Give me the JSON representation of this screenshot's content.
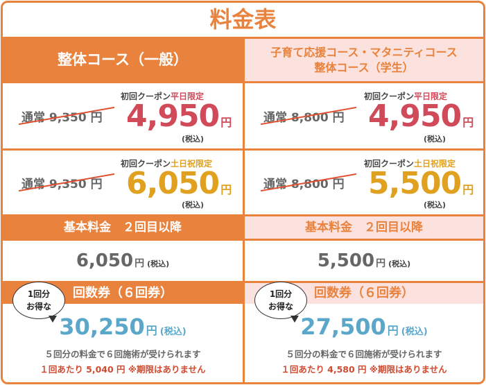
{
  "title": "料金表",
  "columns": [
    {
      "header": [
        "整体コース（一般）"
      ],
      "coupons": [
        {
          "regular": "通常 9,350 円",
          "label": "初回クーポン",
          "limit": "平日限定",
          "price": "4,950",
          "unit": "円",
          "tax": "(税込)"
        },
        {
          "regular": "通常 9,350 円",
          "label": "初回クーポン",
          "limit": "土日祝限定",
          "price": "6,050",
          "unit": "円",
          "tax": "(税込)"
        }
      ],
      "basic": {
        "label": "基本料金　２回目以降",
        "price": "6,050",
        "unit": "円",
        "tax": "(税込)"
      },
      "ticket": {
        "label": "回数券（６回券）",
        "bubble": [
          "1回分",
          "お得な"
        ],
        "price": "30,250",
        "unit": "円",
        "tax": "(税込)",
        "note": "５回分の料金で６回施術が受けられます",
        "detail": "１回あたり 5,040 円 ※期限はありません"
      }
    },
    {
      "header": [
        "子育て応援コース・マタニティコース",
        "整体コース（学生）"
      ],
      "coupons": [
        {
          "regular": "通常 8,800 円",
          "label": "初回クーポン",
          "limit": "平日限定",
          "price": "4,950",
          "unit": "円",
          "tax": "(税込)"
        },
        {
          "regular": "通常 8,800 円",
          "label": "初回クーポン",
          "limit": "土日祝限定",
          "price": "5,500",
          "unit": "円",
          "tax": "(税込)"
        }
      ],
      "basic": {
        "label": "基本料金　２回目以降",
        "price": "5,500",
        "unit": "円",
        "tax": "(税込)"
      },
      "ticket": {
        "label": "回数券（６回券）",
        "bubble": [
          "1回分",
          "お得な"
        ],
        "price": "27,500",
        "unit": "円",
        "tax": "(税込)",
        "note": "５回分の料金で６回施術が受けられます",
        "detail": "１回あたり 4,580 円 ※期限はありません"
      }
    }
  ]
}
